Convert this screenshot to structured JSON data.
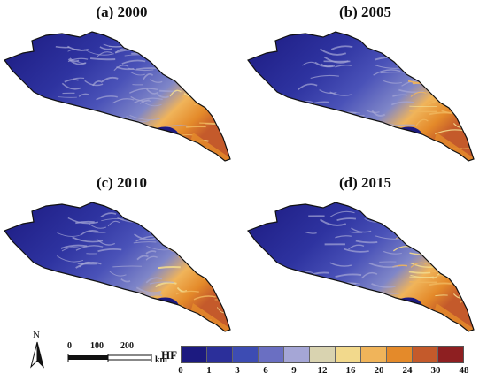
{
  "panels": [
    {
      "title": "(a) 2000",
      "intensity": 0.85
    },
    {
      "title": "(b) 2005",
      "intensity": 0.92
    },
    {
      "title": "(c) 2010",
      "intensity": 1.0
    },
    {
      "title": "(d) 2015",
      "intensity": 1.08
    }
  ],
  "north_label": "N",
  "scale": {
    "ticks": [
      "0",
      "100",
      "200"
    ],
    "unit": "km"
  },
  "legend": {
    "title": "HF",
    "breaks": [
      "0",
      "1",
      "3",
      "6",
      "9",
      "12",
      "16",
      "20",
      "24",
      "30",
      "48"
    ],
    "colors": [
      "#1c1a80",
      "#2b2f9a",
      "#3d4cb3",
      "#6a6fc2",
      "#a5a6d6",
      "#d9d3b0",
      "#f2d98c",
      "#f0b45a",
      "#e48a2a",
      "#c45a2b",
      "#8e1f21"
    ]
  }
}
